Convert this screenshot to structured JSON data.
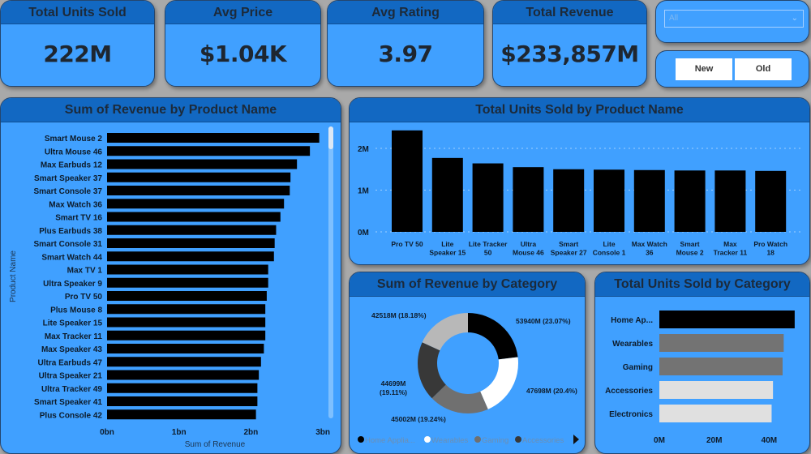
{
  "kpis": [
    {
      "label": "Total Units Sold",
      "value": "222M"
    },
    {
      "label": "Avg Price",
      "value": "$1.04K"
    },
    {
      "label": "Avg Rating",
      "value": "3.97"
    },
    {
      "label": "Total Revenue",
      "value": "$233,857M"
    }
  ],
  "slicer": {
    "selected": "All"
  },
  "toggle": {
    "new_label": "New",
    "old_label": "Old"
  },
  "colors": {
    "card": "#40a0ff",
    "header": "#1268c2",
    "bar": "#000000"
  },
  "chart_data": [
    {
      "type": "bar",
      "orientation": "horizontal",
      "title": "Sum of Revenue by Product Name",
      "xlabel": "Sum of Revenue",
      "ylabel": "Product Name",
      "xlim": [
        0,
        3
      ],
      "xticks": [
        "0bn",
        "1bn",
        "2bn",
        "3bn"
      ],
      "categories": [
        "Smart Mouse 2",
        "Ultra Mouse 46",
        "Max Earbuds 12",
        "Smart Speaker 37",
        "Smart Console 37",
        "Max Watch 36",
        "Smart TV 16",
        "Plus Earbuds 38",
        "Smart Console 31",
        "Smart Watch 44",
        "Max TV 1",
        "Ultra Speaker 9",
        "Pro TV 50",
        "Plus Mouse 8",
        "Lite Speaker 15",
        "Max Tracker 11",
        "Max Speaker 43",
        "Ultra Earbuds 47",
        "Ultra Speaker 21",
        "Ultra Tracker 49",
        "Smart Speaker 41",
        "Plus Console 42"
      ],
      "values": [
        2.95,
        2.82,
        2.64,
        2.55,
        2.54,
        2.46,
        2.41,
        2.35,
        2.33,
        2.32,
        2.24,
        2.24,
        2.22,
        2.2,
        2.2,
        2.2,
        2.18,
        2.14,
        2.11,
        2.09,
        2.09,
        2.07
      ],
      "unit": "bn"
    },
    {
      "type": "bar",
      "title": "Total Units Sold by Product Name",
      "ylim": [
        0,
        2.4
      ],
      "yticks": [
        "0M",
        "1M",
        "2M"
      ],
      "grid": true,
      "categories": [
        [
          "Pro TV 50"
        ],
        [
          "Lite",
          "Speaker 15"
        ],
        [
          "Lite Tracker",
          "50"
        ],
        [
          "Ultra",
          "Mouse 46"
        ],
        [
          "Smart",
          "Speaker 27"
        ],
        [
          "Lite",
          "Console 1"
        ],
        [
          "Max Watch",
          "36"
        ],
        [
          "Smart",
          "Mouse 2"
        ],
        [
          "Max",
          "Tracker 11"
        ],
        [
          "Pro Watch",
          "18"
        ]
      ],
      "values": [
        2.43,
        1.77,
        1.64,
        1.55,
        1.5,
        1.49,
        1.48,
        1.47,
        1.47,
        1.46
      ],
      "unit": "M"
    },
    {
      "type": "pie",
      "donut": true,
      "title": "Sum of Revenue by Category",
      "slices": [
        {
          "name": "Home Appliances",
          "legend": "Home Applia...",
          "value": 53940,
          "label": "53940M (23.07%)",
          "color": "#000000"
        },
        {
          "name": "Wearables",
          "legend": "Wearables",
          "value": 47698,
          "label": "47698M (20.4%)",
          "color": "#ffffff"
        },
        {
          "name": "Gaming",
          "legend": "Gaming",
          "value": 45002,
          "label": "45002M (19.24%)",
          "color": "#707070"
        },
        {
          "name": "Accessories",
          "legend": "Accessories",
          "value": 44699,
          "label": "44699M (19.11%)",
          "label_lines": [
            "44699M",
            "(19.11%)"
          ],
          "color": "#383838"
        },
        {
          "name": "Electronics",
          "value": 42518,
          "label": "42518M (18.18%)",
          "color": "#b8b8b8"
        }
      ],
      "legend": "bottom"
    },
    {
      "type": "bar",
      "orientation": "horizontal",
      "title": "Total Units Sold by Category",
      "xlim": [
        0,
        50
      ],
      "xticks": [
        "0M",
        "20M",
        "40M"
      ],
      "categories": [
        "Home Ap...",
        "Wearables",
        "Gaming",
        "Accessories",
        "Electronics"
      ],
      "values": [
        49.3,
        45.3,
        44.9,
        41.4,
        40.9
      ],
      "colors": [
        "#000000",
        "#737373",
        "#737373",
        "#e0e0e0",
        "#e0e0e0"
      ],
      "unit": "M"
    }
  ]
}
